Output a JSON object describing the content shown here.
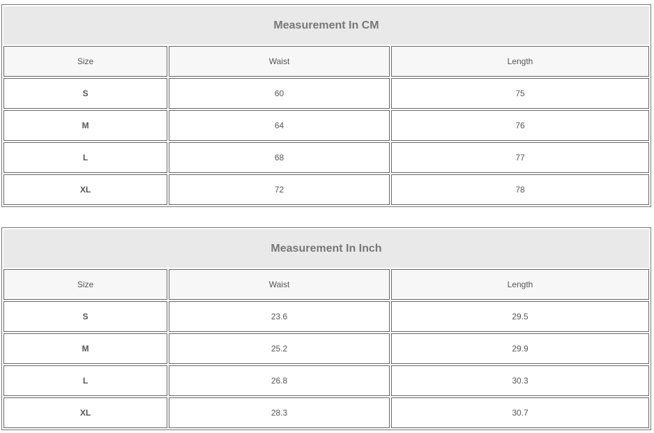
{
  "tables": [
    {
      "title": "Measurement In CM",
      "headers": [
        "Size",
        "Waist",
        "Length"
      ],
      "rows": [
        [
          "S",
          "60",
          "75"
        ],
        [
          "M",
          "64",
          "76"
        ],
        [
          "L",
          "68",
          "77"
        ],
        [
          "XL",
          "72",
          "78"
        ]
      ]
    },
    {
      "title": "Measurement In Inch",
      "headers": [
        "Size",
        "Waist",
        "Length"
      ],
      "rows": [
        [
          "S",
          "23.6",
          "29.5"
        ],
        [
          "M",
          "25.2",
          "29.9"
        ],
        [
          "L",
          "26.8",
          "30.3"
        ],
        [
          "XL",
          "28.3",
          "30.7"
        ]
      ]
    }
  ]
}
